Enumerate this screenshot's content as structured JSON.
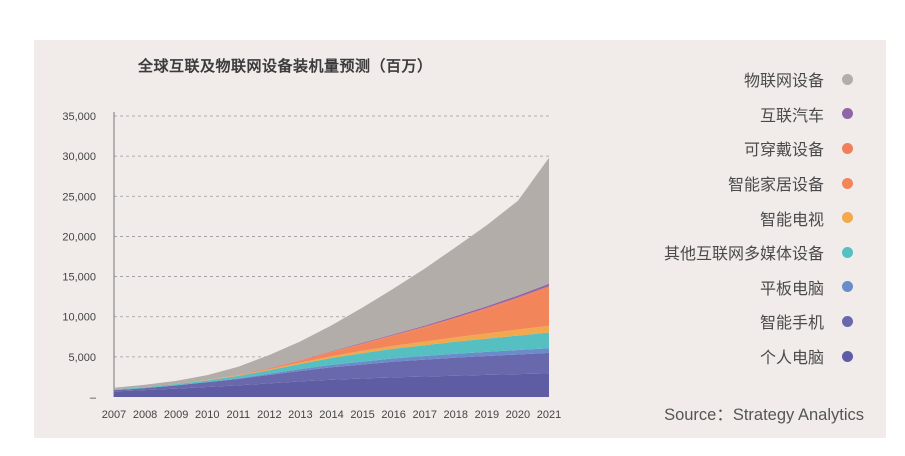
{
  "chart_data": {
    "type": "area",
    "stacked": true,
    "title": "全球互联及物联网设备装机量预测（百万）",
    "xlabel": "",
    "ylabel": "",
    "x": [
      "2007",
      "2008",
      "2009",
      "2010",
      "2011",
      "2012",
      "2013",
      "2014",
      "2015",
      "2016",
      "2017",
      "2018",
      "2019",
      "2020",
      "2021"
    ],
    "y_ticks": [
      "–",
      "5,000",
      "10,000",
      "15,000",
      "20,000",
      "25,000",
      "30,000",
      "35,000"
    ],
    "ylim": [
      0,
      35000
    ],
    "grid": "horizontal dashed",
    "legend_position": "right",
    "series": [
      {
        "name": "个人电脑",
        "color": "#5e5da3",
        "values": [
          700,
          850,
          1050,
          1250,
          1450,
          1700,
          1950,
          2150,
          2300,
          2450,
          2550,
          2650,
          2750,
          2850,
          2950
        ]
      },
      {
        "name": "智能手机",
        "color": "#6a68ad",
        "values": [
          150,
          250,
          400,
          600,
          800,
          1050,
          1300,
          1550,
          1750,
          1950,
          2100,
          2250,
          2350,
          2450,
          2550
        ]
      },
      {
        "name": "平板电脑",
        "color": "#6b8ccb",
        "values": [
          0,
          0,
          0,
          20,
          80,
          150,
          230,
          300,
          360,
          410,
          450,
          490,
          520,
          550,
          580
        ]
      },
      {
        "name": "其他互联网多媒体设备",
        "color": "#56bfc1",
        "values": [
          100,
          120,
          150,
          200,
          300,
          450,
          650,
          850,
          1050,
          1200,
          1350,
          1500,
          1650,
          1800,
          1950
        ]
      },
      {
        "name": "智能电视",
        "color": "#f2a94e",
        "values": [
          0,
          0,
          10,
          30,
          60,
          100,
          150,
          220,
          300,
          380,
          460,
          550,
          650,
          750,
          850
        ]
      },
      {
        "name": "智能家居设备",
        "color": "#f2855a",
        "values": [
          0,
          0,
          0,
          10,
          50,
          120,
          250,
          500,
          800,
          1200,
          1700,
          2300,
          3000,
          3800,
          4700
        ]
      },
      {
        "name": "可穿戴设备",
        "color": "#ef7f5f",
        "values": [
          0,
          0,
          0,
          0,
          10,
          30,
          60,
          90,
          110,
          130,
          150,
          170,
          190,
          210,
          230
        ]
      },
      {
        "name": "互联汽车",
        "color": "#9064a8",
        "values": [
          0,
          0,
          0,
          10,
          20,
          30,
          40,
          60,
          80,
          100,
          130,
          160,
          200,
          240,
          290
        ]
      },
      {
        "name": "物联网设备",
        "color": "#b3ada9",
        "values": [
          200,
          300,
          400,
          600,
          1000,
          1600,
          2300,
          3200,
          4400,
          5700,
          7100,
          8600,
          10100,
          11800,
          15700
        ]
      }
    ],
    "source": "Source：Strategy Analytics"
  }
}
